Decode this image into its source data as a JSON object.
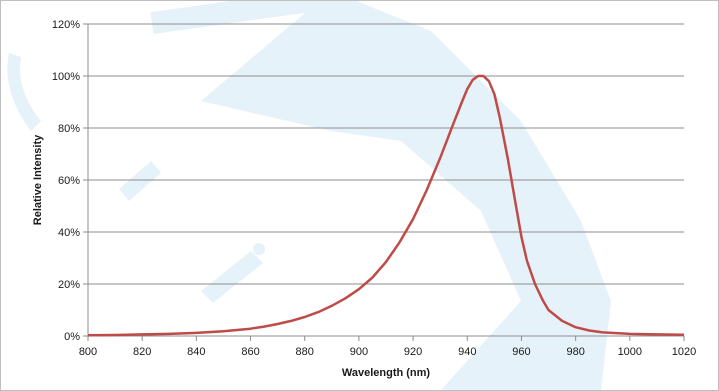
{
  "chart_data": {
    "type": "line",
    "title": "",
    "xlabel": "Wavelength (nm)",
    "ylabel": "Relative Intensity",
    "xlim": [
      800,
      1020
    ],
    "ylim": [
      0,
      120
    ],
    "x_ticks": [
      800,
      820,
      840,
      860,
      880,
      900,
      920,
      940,
      960,
      980,
      1000,
      1020
    ],
    "x_tick_labels": [
      "800",
      "820",
      "840",
      "860",
      "880",
      "900",
      "920",
      "940",
      "960",
      "980",
      "1000",
      "1020"
    ],
    "y_ticks": [
      0,
      20,
      40,
      60,
      80,
      100,
      120
    ],
    "y_tick_labels": [
      "0%",
      "20%",
      "40%",
      "60%",
      "80%",
      "100%",
      "120%"
    ],
    "grid": "horizontal",
    "legend": "none",
    "series": [
      {
        "color": "#be4b48",
        "x": [
          800,
          810,
          820,
          830,
          840,
          850,
          860,
          865,
          870,
          875,
          880,
          885,
          890,
          895,
          900,
          905,
          910,
          915,
          920,
          925,
          930,
          935,
          938,
          940,
          942,
          944,
          946,
          948,
          950,
          952,
          955,
          958,
          960,
          962,
          965,
          968,
          970,
          975,
          980,
          985,
          990,
          1000,
          1010,
          1020
        ],
        "y": [
          0.3,
          0.4,
          0.6,
          0.8,
          1.2,
          1.8,
          2.8,
          3.6,
          4.6,
          5.8,
          7.3,
          9.2,
          11.6,
          14.5,
          18.0,
          22.5,
          28.5,
          36.0,
          45.0,
          56.0,
          68.5,
          82.0,
          90.0,
          95.0,
          98.5,
          100.0,
          100.0,
          98.0,
          93.0,
          84.0,
          68.0,
          50.0,
          38.0,
          29.0,
          20.0,
          13.5,
          10.0,
          5.8,
          3.4,
          2.1,
          1.4,
          0.8,
          0.6,
          0.5
        ]
      }
    ],
    "style": {
      "grid_color": "#8c8c8c",
      "axis_color": "#8c8c8c"
    }
  }
}
